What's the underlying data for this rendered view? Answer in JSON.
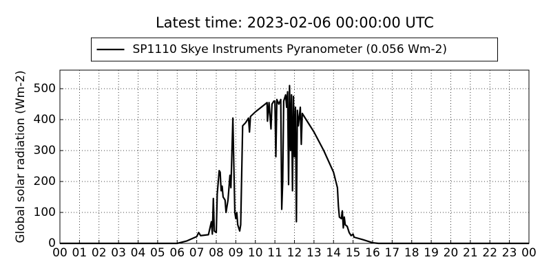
{
  "chart_data": {
    "type": "line",
    "title": "Latest time: 2023-02-06 00:00:00 UTC",
    "y_label": "Global solar radiation (Wm-2)",
    "x": [
      0,
      6.0,
      6.5,
      7.0,
      7.1,
      7.2,
      7.6,
      7.75,
      7.8,
      7.85,
      7.9,
      8.0,
      8.05,
      8.15,
      8.2,
      8.25,
      8.3,
      8.35,
      8.45,
      8.5,
      8.6,
      8.7,
      8.75,
      8.85,
      8.9,
      8.95,
      9.0,
      9.05,
      9.1,
      9.2,
      9.25,
      9.35,
      9.5,
      9.65,
      9.7,
      9.75,
      10.0,
      10.5,
      10.6,
      10.62,
      10.7,
      10.8,
      10.85,
      10.95,
      11.0,
      11.05,
      11.1,
      11.2,
      11.3,
      11.35,
      11.4,
      11.45,
      11.55,
      11.6,
      11.65,
      11.7,
      11.75,
      11.8,
      11.85,
      11.9,
      11.95,
      12.0,
      12.05,
      12.1,
      12.15,
      12.2,
      12.3,
      12.35,
      12.4,
      12.6,
      13.0,
      13.5,
      14.0,
      14.2,
      14.25,
      14.3,
      14.4,
      14.45,
      14.5,
      14.55,
      14.6,
      14.7,
      14.8,
      14.9,
      15.0,
      15.05,
      15.5,
      16.0,
      16.3,
      24
    ],
    "series": [
      {
        "name": "SP1110 Skye Instruments Pyranometer (0.056 Wm-2)",
        "color": "#000000",
        "values": [
          0,
          0,
          8,
          22,
          35,
          25,
          28,
          70,
          30,
          145,
          40,
          35,
          160,
          235,
          230,
          170,
          185,
          150,
          140,
          100,
          140,
          220,
          180,
          405,
          250,
          100,
          80,
          100,
          60,
          40,
          60,
          380,
          390,
          405,
          360,
          410,
          425,
          450,
          455,
          395,
          455,
          370,
          450,
          460,
          460,
          280,
          465,
          450,
          465,
          110,
          200,
          460,
          480,
          440,
          490,
          190,
          510,
          300,
          480,
          170,
          475,
          280,
          440,
          70,
          430,
          380,
          440,
          320,
          420,
          400,
          360,
          300,
          230,
          180,
          120,
          85,
          80,
          105,
          50,
          85,
          60,
          55,
          35,
          25,
          30,
          20,
          12,
          2,
          0,
          0
        ]
      }
    ],
    "xlim": [
      0,
      24
    ],
    "ylim": [
      0,
      560
    ],
    "xticks": [
      {
        "value": 0,
        "label": "00"
      },
      {
        "value": 1,
        "label": "01"
      },
      {
        "value": 2,
        "label": "02"
      },
      {
        "value": 3,
        "label": "03"
      },
      {
        "value": 4,
        "label": "04"
      },
      {
        "value": 5,
        "label": "05"
      },
      {
        "value": 6,
        "label": "06"
      },
      {
        "value": 7,
        "label": "07"
      },
      {
        "value": 8,
        "label": "08"
      },
      {
        "value": 9,
        "label": "09"
      },
      {
        "value": 10,
        "label": "10"
      },
      {
        "value": 11,
        "label": "11"
      },
      {
        "value": 12,
        "label": "12"
      },
      {
        "value": 13,
        "label": "13"
      },
      {
        "value": 14,
        "label": "14"
      },
      {
        "value": 15,
        "label": "15"
      },
      {
        "value": 16,
        "label": "16"
      },
      {
        "value": 17,
        "label": "17"
      },
      {
        "value": 18,
        "label": "18"
      },
      {
        "value": 19,
        "label": "19"
      },
      {
        "value": 20,
        "label": "20"
      },
      {
        "value": 21,
        "label": "21"
      },
      {
        "value": 22,
        "label": "22"
      },
      {
        "value": 23,
        "label": "23"
      },
      {
        "value": 24,
        "label": "00"
      }
    ],
    "yticks": [
      0,
      100,
      200,
      300,
      400,
      500
    ],
    "grid": true,
    "legend": "top"
  }
}
